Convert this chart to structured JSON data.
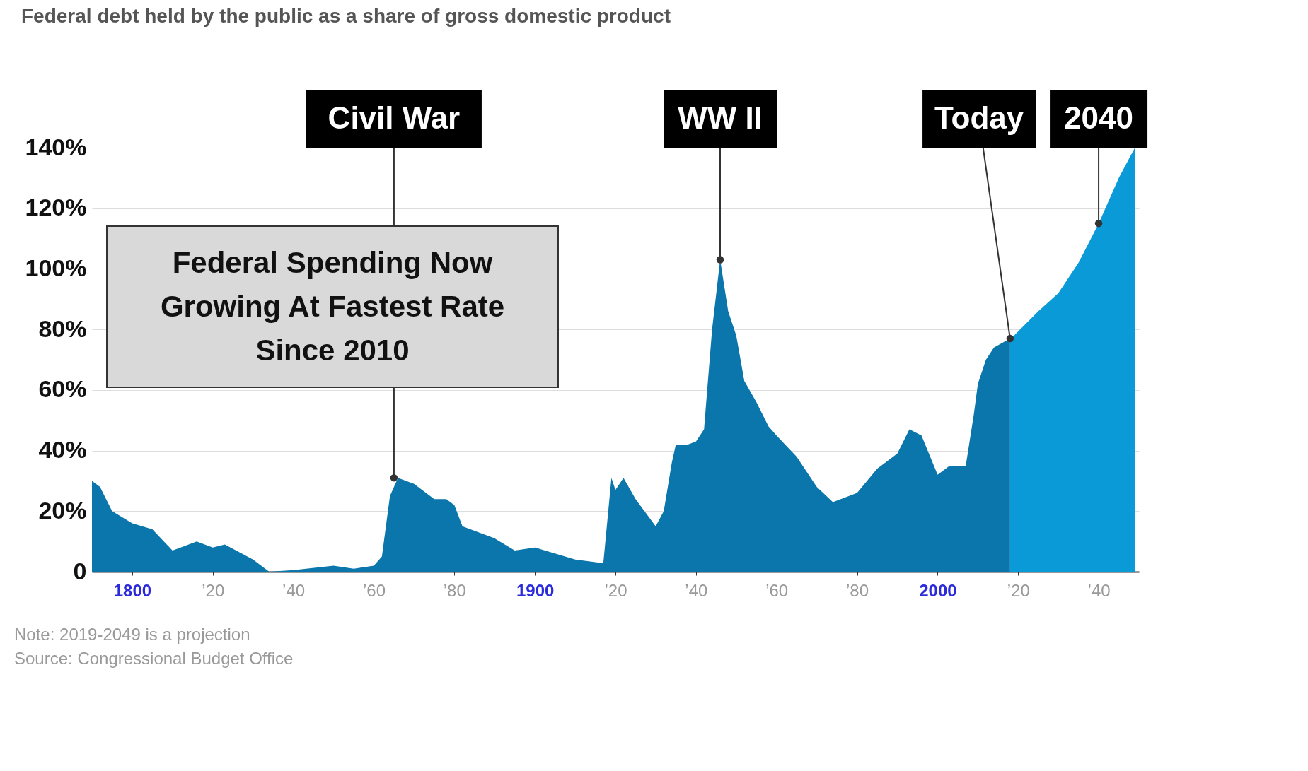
{
  "chart_data": {
    "type": "area",
    "title": "Federal debt held by the public as a share of gross domestic product",
    "series": [
      {
        "color": "#0a76ab",
        "x": [
          1790,
          1792,
          1795,
          1800,
          1805,
          1810,
          1816,
          1820,
          1823,
          1830,
          1834,
          1840,
          1850,
          1855,
          1860,
          1862,
          1864,
          1866,
          1870,
          1875,
          1878,
          1880,
          1882,
          1890,
          1895,
          1900,
          1905,
          1910,
          1916,
          1917,
          1919,
          1920,
          1922,
          1925,
          1930,
          1932,
          1934,
          1935,
          1938,
          1940,
          1942,
          1944,
          1946,
          1948,
          1950,
          1952,
          1955,
          1958,
          1960,
          1965,
          1970,
          1974,
          1980,
          1985,
          1990,
          1993,
          1996,
          2000,
          2003,
          2007,
          2009,
          2010,
          2012,
          2014,
          2018
        ],
        "values": [
          30,
          28,
          20,
          16,
          14,
          7,
          10,
          8,
          9,
          4,
          0,
          0.5,
          2,
          1,
          2,
          5,
          25,
          31,
          29,
          24,
          24,
          22,
          15,
          11,
          7,
          8,
          6,
          4,
          3,
          3,
          31,
          27,
          31,
          24,
          15,
          20,
          36,
          42,
          42,
          43,
          47,
          80,
          103,
          86,
          78,
          63,
          56,
          48,
          45,
          38,
          28,
          23,
          26,
          34,
          39,
          47,
          45,
          32,
          35,
          35,
          52,
          62,
          70,
          74,
          77
        ]
      },
      {
        "color": "#0a9ad8",
        "x": [
          2018,
          2019,
          2025,
          2030,
          2035,
          2040,
          2045,
          2049
        ],
        "values": [
          77,
          78,
          86,
          92,
          102,
          115,
          130,
          140
        ]
      }
    ],
    "xlim": [
      1790,
      2050
    ],
    "xticks": [
      {
        "value": 1800,
        "label": "1800"
      },
      {
        "value": 1820,
        "label": "’20"
      },
      {
        "value": 1840,
        "label": "’40"
      },
      {
        "value": 1860,
        "label": "’60"
      },
      {
        "value": 1880,
        "label": "’80"
      },
      {
        "value": 1900,
        "label": "1900"
      },
      {
        "value": 1920,
        "label": "’20"
      },
      {
        "value": 1940,
        "label": "’40"
      },
      {
        "value": 1960,
        "label": "’60"
      },
      {
        "value": 1980,
        "label": "’80"
      },
      {
        "value": 2000,
        "label": "2000"
      },
      {
        "value": 2020,
        "label": "’20"
      },
      {
        "value": 2040,
        "label": "’40"
      }
    ],
    "ylim": [
      0,
      140
    ],
    "yticks": [
      0,
      {
        "value": 20,
        "label": "20%"
      },
      {
        "value": 40,
        "label": "40%"
      },
      {
        "value": 60,
        "label": "60%"
      },
      {
        "value": 80,
        "label": "80%"
      },
      {
        "value": 100,
        "label": "100%"
      },
      {
        "value": 120,
        "label": "120%"
      },
      {
        "value": 140,
        "label": "140%"
      }
    ],
    "grid": "y",
    "annotations": [
      {
        "text": "Civil War",
        "x": 1865,
        "y": 31
      },
      {
        "text": "WW II",
        "x": 1946,
        "y": 103
      },
      {
        "text": "Today",
        "x": 2018,
        "y": 77
      },
      {
        "text": "2040",
        "x": 2040,
        "y": 115
      },
      "Federal Spending Now Growing At Fastest Rate Since 2010",
      "Note: 2019-2049 is a projection",
      "Source: Congressional Budget Office"
    ]
  }
}
